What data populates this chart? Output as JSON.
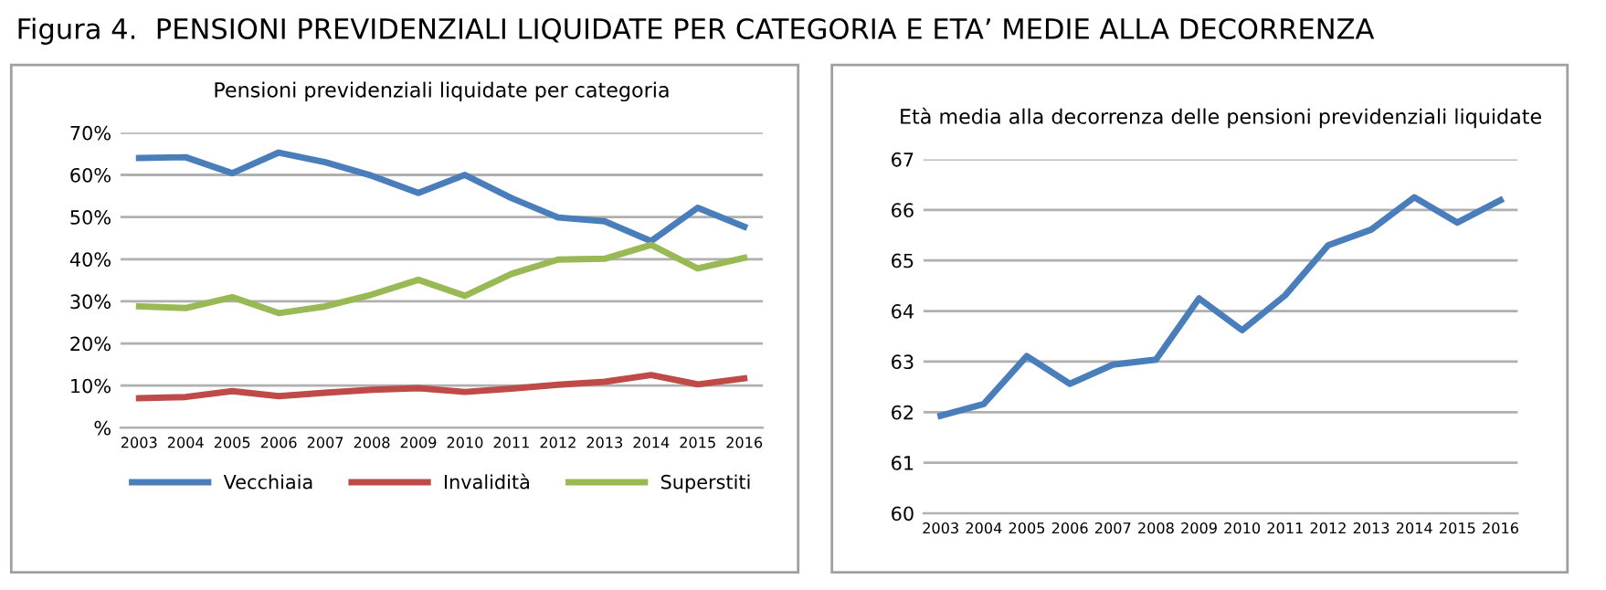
{
  "chart_data": [
    {
      "type": "line",
      "title": "Pensioni previdenziali liquidate per categoria",
      "annotations": [
        "Figura 4.  PENSIONI PREVIDENZIALI LIQUIDATE PER CATEGORIA E ETA’ MEDIE ALLA DECORRENZA"
      ],
      "categories": [
        "2003",
        "2004",
        "2005",
        "2006",
        "2007",
        "2008",
        "2009",
        "2010",
        "2011",
        "2012",
        "2013",
        "2014",
        "2015",
        "2016"
      ],
      "series": [
        {
          "name": "Vecchiaia",
          "color": "#4a7ebb",
          "values": [
            64.0,
            64.2,
            60.4,
            65.3,
            63.0,
            59.8,
            55.7,
            60.0,
            54.5,
            49.9,
            49.0,
            44.3,
            52.2,
            47.7
          ]
        },
        {
          "name": "Invalidità",
          "color": "#be4b48",
          "values": [
            7.0,
            7.3,
            8.7,
            7.5,
            8.3,
            9.0,
            9.4,
            8.5,
            9.3,
            10.2,
            10.9,
            12.5,
            10.3,
            11.7
          ]
        },
        {
          "name": "Superstiti",
          "color": "#98b954",
          "values": [
            28.8,
            28.4,
            31.0,
            27.2,
            28.8,
            31.6,
            35.1,
            31.3,
            36.5,
            39.9,
            40.1,
            43.4,
            37.8,
            40.3
          ]
        }
      ],
      "ylim": [
        0,
        70
      ],
      "yticks": [
        {
          "value": 0,
          "label": "%"
        },
        {
          "value": 10,
          "label": "10%"
        },
        {
          "value": 20,
          "label": "20%"
        },
        {
          "value": 30,
          "label": "30%"
        },
        {
          "value": 40,
          "label": "40%"
        },
        {
          "value": 50,
          "label": "50%"
        },
        {
          "value": 60,
          "label": "60%"
        },
        {
          "value": 70,
          "label": "70%"
        }
      ],
      "grid": "y",
      "legend": "bottom",
      "line_style": "solid"
    },
    {
      "type": "line",
      "title": "Età media alla decorrenza delle pensioni previdenziali liquidate",
      "categories": [
        "2003",
        "2004",
        "2005",
        "2006",
        "2007",
        "2008",
        "2009",
        "2010",
        "2011",
        "2012",
        "2013",
        "2014",
        "2015",
        "2016"
      ],
      "series": [
        {
          "color": "#4a7ebb",
          "values": [
            61.93,
            62.16,
            63.11,
            62.56,
            62.94,
            63.04,
            64.25,
            63.62,
            64.31,
            65.3,
            65.61,
            66.25,
            65.75,
            66.19
          ]
        }
      ],
      "ylim": [
        60,
        67
      ],
      "yticks": [
        60,
        61,
        62,
        63,
        64,
        65,
        66,
        67
      ],
      "grid": "y",
      "legend": false,
      "line_style": "solid"
    }
  ]
}
